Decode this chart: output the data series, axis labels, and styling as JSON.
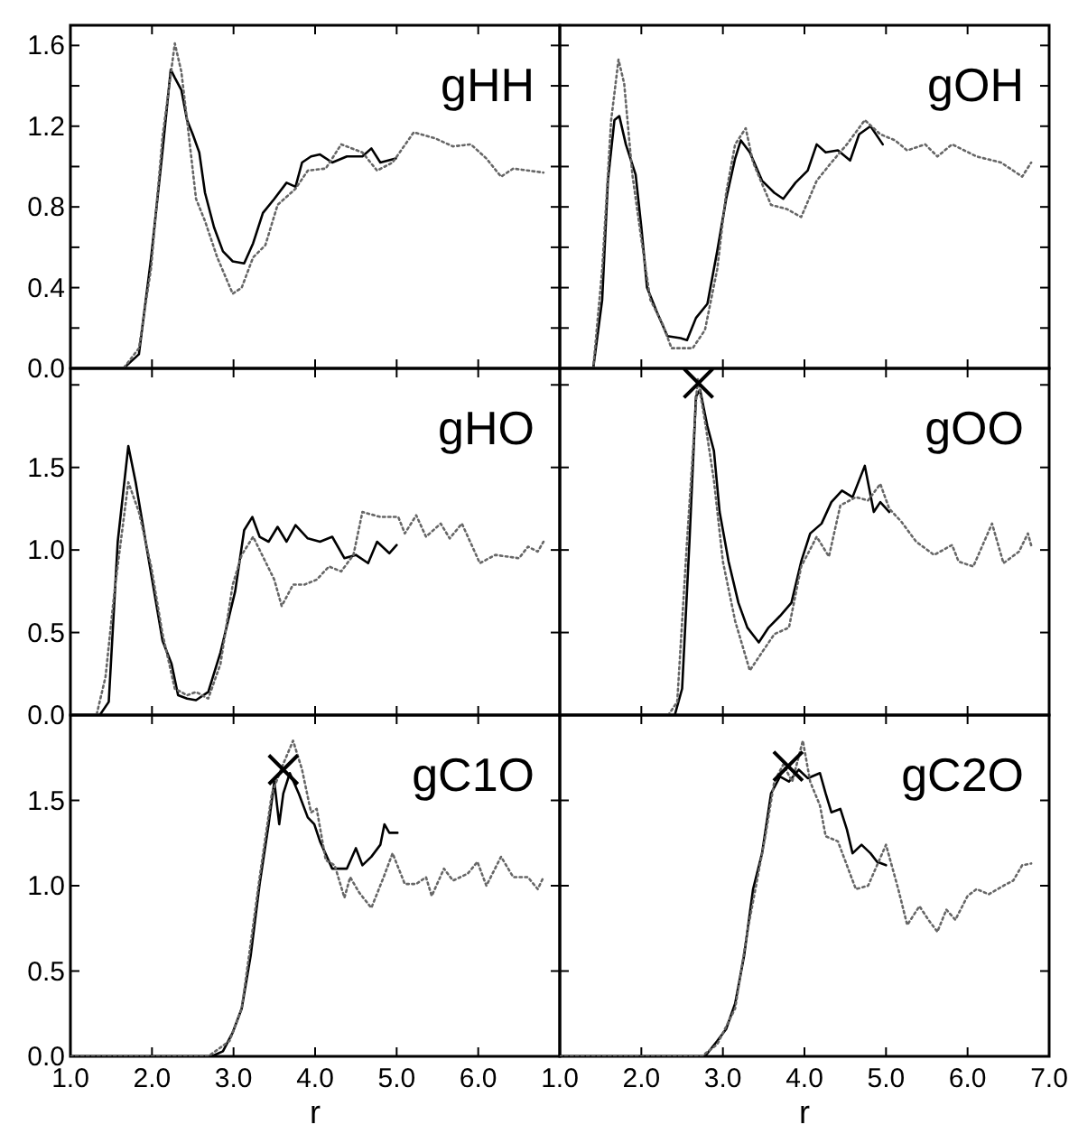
{
  "chart_data": [
    {
      "type": "line",
      "title": "gHH",
      "xlim": [
        1,
        7
      ],
      "xticks": [
        1,
        2,
        3,
        4,
        5,
        6,
        {
          "value": 7,
          "label": null
        }
      ],
      "ylim": [
        0,
        1.7
      ],
      "yticks": [
        {
          "value": 0,
          "label": "0.0"
        },
        {
          "value": 0.2,
          "label": null
        },
        {
          "value": 0.4,
          "label": "0.4"
        },
        {
          "value": 0.6,
          "label": null
        },
        {
          "value": 0.8,
          "label": "0.8"
        },
        {
          "value": 1.0,
          "label": null
        },
        {
          "value": 1.2,
          "label": "1.2"
        },
        {
          "value": 1.4,
          "label": null
        },
        {
          "value": 1.6,
          "label": "1.6"
        }
      ],
      "tick_labels": "y",
      "series": [
        {
          "color": "#000000",
          "line_style": "solid",
          "x": [
            1,
            1.65,
            1.84,
            1.99,
            2.13,
            2.23,
            2.28,
            2.36,
            2.43,
            2.5,
            2.58,
            2.65,
            2.76,
            2.87,
            2.99,
            3.13,
            3.24,
            3.36,
            3.5,
            3.65,
            3.76,
            3.84,
            3.95,
            4.06,
            4.21,
            4.39,
            4.58,
            4.69,
            4.8,
            4.99
          ],
          "values": [
            0,
            0,
            0.07,
            0.55,
            1.08,
            1.48,
            1.44,
            1.38,
            1.23,
            1.16,
            1.07,
            0.87,
            0.7,
            0.58,
            0.53,
            0.52,
            0.62,
            0.77,
            0.84,
            0.92,
            0.9,
            1.02,
            1.05,
            1.06,
            1.02,
            1.05,
            1.05,
            1.09,
            1.02,
            1.04
          ]
        },
        {
          "color": "#666666",
          "line_style": "dotted",
          "x": [
            1,
            1.65,
            1.84,
            1.99,
            2.13,
            2.28,
            2.36,
            2.43,
            2.54,
            2.65,
            2.8,
            2.99,
            3.1,
            3.24,
            3.39,
            3.54,
            3.76,
            3.91,
            4.13,
            4.32,
            4.58,
            4.76,
            4.95,
            5.21,
            5.47,
            5.69,
            5.91,
            6.1,
            6.28,
            6.43,
            6.8
          ],
          "values": [
            0,
            0,
            0.1,
            0.5,
            1.15,
            1.61,
            1.47,
            1.23,
            0.84,
            0.73,
            0.55,
            0.37,
            0.4,
            0.55,
            0.61,
            0.81,
            0.89,
            0.98,
            0.99,
            1.11,
            1.07,
            0.98,
            1.02,
            1.17,
            1.14,
            1.1,
            1.11,
            1.04,
            0.95,
            0.99,
            0.97
          ]
        }
      ]
    },
    {
      "type": "line",
      "title": "gOH",
      "xlim": [
        1,
        7
      ],
      "xticks": [
        1,
        2,
        3,
        4,
        5,
        6,
        7
      ],
      "ylim": [
        0,
        1.7
      ],
      "yticks": [
        0,
        0.2,
        0.4,
        0.6,
        0.8,
        1.0,
        1.2,
        1.4,
        1.6
      ],
      "tick_labels": false,
      "series": [
        {
          "color": "#000000",
          "line_style": "solid",
          "x": [
            1,
            1.41,
            1.52,
            1.59,
            1.67,
            1.73,
            1.81,
            1.93,
            2.0,
            2.07,
            2.19,
            2.32,
            2.48,
            2.56,
            2.67,
            2.81,
            2.93,
            3.04,
            3.15,
            3.22,
            3.33,
            3.48,
            3.63,
            3.74,
            3.89,
            4.04,
            4.15,
            4.26,
            4.41,
            4.56,
            4.67,
            4.81,
            4.96
          ],
          "values": [
            0,
            0,
            0.34,
            0.93,
            1.23,
            1.25,
            1.11,
            0.96,
            0.7,
            0.4,
            0.28,
            0.16,
            0.15,
            0.14,
            0.25,
            0.32,
            0.58,
            0.84,
            1.04,
            1.13,
            1.07,
            0.93,
            0.87,
            0.84,
            0.92,
            0.98,
            1.11,
            1.07,
            1.08,
            1.03,
            1.16,
            1.2,
            1.11
          ]
        },
        {
          "color": "#666666",
          "line_style": "dotted",
          "x": [
            1,
            1.41,
            1.52,
            1.63,
            1.72,
            1.79,
            1.89,
            2.0,
            2.11,
            2.26,
            2.37,
            2.63,
            2.78,
            2.93,
            3.04,
            3.15,
            3.28,
            3.37,
            3.59,
            3.78,
            3.96,
            4.15,
            4.33,
            4.52,
            4.74,
            4.93,
            5.11,
            5.26,
            5.48,
            5.63,
            5.81,
            6.11,
            6.41,
            6.67,
            6.78
          ],
          "values": [
            0,
            0,
            0.49,
            1.23,
            1.53,
            1.41,
            0.96,
            0.64,
            0.34,
            0.22,
            0.1,
            0.1,
            0.19,
            0.49,
            0.87,
            1.11,
            1.19,
            1.02,
            0.81,
            0.79,
            0.75,
            0.93,
            1.02,
            1.11,
            1.23,
            1.16,
            1.13,
            1.08,
            1.11,
            1.05,
            1.11,
            1.05,
            1.02,
            0.95,
            1.02
          ]
        }
      ]
    },
    {
      "type": "line",
      "title": "gHO",
      "xlim": [
        1,
        7
      ],
      "xticks": [
        1,
        2,
        3,
        4,
        5,
        6,
        {
          "value": 7,
          "label": null
        }
      ],
      "ylim": [
        0,
        2.1
      ],
      "yticks": [
        {
          "value": 0,
          "label": "0.0"
        },
        {
          "value": 0.5,
          "label": "0.5"
        },
        {
          "value": 1.0,
          "label": "1.0"
        },
        {
          "value": 1.5,
          "label": "1.5"
        },
        {
          "value": 2.0,
          "label": null
        }
      ],
      "tick_labels": "y",
      "series": [
        {
          "color": "#000000",
          "line_style": "solid",
          "x": [
            1,
            1.36,
            1.47,
            1.58,
            1.71,
            1.8,
            1.95,
            2.13,
            2.24,
            2.32,
            2.43,
            2.54,
            2.69,
            2.84,
            3.02,
            3.13,
            3.23,
            3.32,
            3.43,
            3.54,
            3.65,
            3.76,
            3.91,
            4.06,
            4.21,
            4.36,
            4.5,
            4.65,
            4.76,
            4.91,
            5.0
          ],
          "values": [
            0,
            0,
            0.08,
            1.05,
            1.63,
            1.41,
            0.97,
            0.45,
            0.31,
            0.12,
            0.1,
            0.09,
            0.14,
            0.38,
            0.75,
            1.12,
            1.2,
            1.08,
            1.05,
            1.14,
            1.05,
            1.15,
            1.07,
            1.05,
            1.08,
            0.95,
            0.97,
            0.92,
            1.05,
            0.98,
            1.03
          ]
        },
        {
          "color": "#666666",
          "line_style": "dotted",
          "x": [
            1,
            1.32,
            1.43,
            1.54,
            1.71,
            1.84,
            1.99,
            2.13,
            2.28,
            2.43,
            2.54,
            2.69,
            2.84,
            2.99,
            3.1,
            3.24,
            3.39,
            3.5,
            3.59,
            3.73,
            3.87,
            4.02,
            4.17,
            4.32,
            4.47,
            4.58,
            4.8,
            5.02,
            5.1,
            5.24,
            5.36,
            5.54,
            5.65,
            5.8,
            6.02,
            6.21,
            6.5,
            6.61,
            6.73,
            6.8
          ],
          "values": [
            0,
            0,
            0.23,
            0.75,
            1.41,
            1.23,
            0.9,
            0.49,
            0.16,
            0.12,
            0.14,
            0.1,
            0.31,
            0.79,
            0.97,
            1.08,
            0.93,
            0.82,
            0.66,
            0.79,
            0.79,
            0.82,
            0.9,
            0.87,
            0.97,
            1.23,
            1.2,
            1.2,
            1.1,
            1.21,
            1.08,
            1.16,
            1.07,
            1.16,
            0.92,
            0.97,
            0.95,
            1.02,
            0.99,
            1.05
          ]
        }
      ]
    },
    {
      "type": "line",
      "title": "gOO",
      "xlim": [
        1,
        7
      ],
      "xticks": [
        1,
        2,
        3,
        4,
        5,
        6,
        7
      ],
      "ylim": [
        0,
        2.1
      ],
      "yticks": [
        0,
        0.5,
        1.0,
        1.5,
        2.0
      ],
      "tick_labels": false,
      "series": [
        {
          "color": "#000000",
          "line_style": "solid",
          "x": [
            1,
            2.41,
            2.5,
            2.59,
            2.67,
            2.72,
            2.81,
            2.89,
            2.96,
            3.07,
            3.19,
            3.3,
            3.44,
            3.56,
            3.7,
            3.84,
            3.96,
            4.07,
            4.21,
            4.33,
            4.46,
            4.59,
            4.74,
            4.85,
            4.93,
            5.04
          ],
          "values": [
            0,
            0,
            0.16,
            1.05,
            1.93,
            1.97,
            1.75,
            1.6,
            1.23,
            0.93,
            0.68,
            0.53,
            0.44,
            0.53,
            0.6,
            0.68,
            0.93,
            1.1,
            1.16,
            1.29,
            1.36,
            1.32,
            1.51,
            1.23,
            1.29,
            1.23
          ]
        },
        {
          "color": "#666666",
          "line_style": "dotted",
          "x": [
            1,
            2.33,
            2.44,
            2.56,
            2.69,
            2.78,
            2.89,
            3.0,
            3.15,
            3.33,
            3.48,
            3.63,
            3.81,
            3.96,
            4.15,
            4.3,
            4.44,
            4.63,
            4.78,
            4.93,
            5.04,
            5.19,
            5.37,
            5.59,
            5.81,
            5.89,
            6.07,
            6.3,
            6.44,
            6.63,
            6.74,
            6.79
          ],
          "values": [
            0,
            0,
            0.08,
            1.05,
            2.04,
            1.78,
            1.42,
            0.93,
            0.57,
            0.27,
            0.38,
            0.49,
            0.53,
            0.9,
            1.08,
            0.96,
            1.27,
            1.32,
            1.3,
            1.4,
            1.25,
            1.17,
            1.05,
            0.97,
            1.03,
            0.93,
            0.9,
            1.16,
            0.92,
            0.99,
            1.1,
            1.01
          ]
        },
        {
          "type": "scatter",
          "marker": "cross",
          "color": "#000000",
          "x": [
            2.7
          ],
          "values": [
            2.01
          ]
        }
      ]
    },
    {
      "type": "line",
      "title": "gC1O",
      "xlabel": "r",
      "xlim": [
        1,
        7
      ],
      "xticks": [
        {
          "value": 1,
          "label": "1.0"
        },
        {
          "value": 2,
          "label": "2.0"
        },
        {
          "value": 3,
          "label": "3.0"
        },
        {
          "value": 4,
          "label": "4.0"
        },
        {
          "value": 5,
          "label": "5.0"
        },
        {
          "value": 6,
          "label": "6.0"
        },
        {
          "value": 7,
          "label": null
        }
      ],
      "ylim": [
        0,
        2.0
      ],
      "yticks": [
        {
          "value": 0,
          "label": "0.0"
        },
        {
          "value": 0.5,
          "label": "0.5"
        },
        {
          "value": 1.0,
          "label": "1.0"
        },
        {
          "value": 1.5,
          "label": "1.5"
        },
        {
          "value": 2.0,
          "label": null
        }
      ],
      "series": [
        {
          "color": "#000000",
          "line_style": "solid",
          "x": [
            1,
            2.73,
            2.87,
            2.99,
            3.1,
            3.21,
            3.32,
            3.43,
            3.5,
            3.56,
            3.61,
            3.69,
            3.8,
            3.91,
            3.99,
            4.06,
            4.21,
            4.39,
            4.5,
            4.58,
            4.69,
            4.8,
            4.85,
            4.91,
            5.01
          ],
          "values": [
            0,
            0,
            0.03,
            0.14,
            0.28,
            0.59,
            1.01,
            1.36,
            1.61,
            1.36,
            1.54,
            1.66,
            1.54,
            1.4,
            1.36,
            1.26,
            1.1,
            1.1,
            1.22,
            1.12,
            1.17,
            1.24,
            1.36,
            1.31,
            1.31
          ]
        },
        {
          "color": "#666666",
          "line_style": "dotted",
          "x": [
            1,
            2.69,
            2.95,
            3.1,
            3.21,
            3.32,
            3.47,
            3.58,
            3.73,
            3.84,
            3.95,
            4.02,
            4.13,
            4.24,
            4.36,
            4.43,
            4.54,
            4.69,
            4.84,
            4.95,
            5.1,
            5.24,
            5.36,
            5.43,
            5.58,
            5.69,
            5.87,
            5.99,
            6.1,
            6.28,
            6.43,
            6.61,
            6.73,
            6.8
          ],
          "values": [
            0,
            0,
            0.09,
            0.28,
            0.66,
            1.05,
            1.54,
            1.68,
            1.85,
            1.68,
            1.43,
            1.45,
            1.15,
            1.12,
            0.93,
            1.05,
            0.96,
            0.87,
            1.05,
            1.19,
            1.01,
            1.01,
            1.05,
            0.94,
            1.1,
            1.03,
            1.07,
            1.14,
            1.0,
            1.17,
            1.05,
            1.05,
            0.98,
            1.05
          ]
        },
        {
          "type": "scatter",
          "marker": "cross",
          "color": "#000000",
          "x": [
            3.61
          ],
          "values": [
            1.68
          ]
        }
      ]
    },
    {
      "type": "line",
      "title": "gC2O",
      "xlabel": "r",
      "xlim": [
        1,
        7
      ],
      "xticks": [
        {
          "value": 1,
          "label": "1.0"
        },
        {
          "value": 2,
          "label": "2.0"
        },
        {
          "value": 3,
          "label": "3.0"
        },
        {
          "value": 4,
          "label": "4.0"
        },
        {
          "value": 5,
          "label": "5.0"
        },
        {
          "value": 6,
          "label": "6.0"
        },
        {
          "value": 7,
          "label": "7.0"
        }
      ],
      "ylim": [
        0,
        2.0
      ],
      "yticks": [
        0,
        0.5,
        1.0,
        1.5,
        2.0
      ],
      "tick_labels": "x",
      "series": [
        {
          "color": "#000000",
          "line_style": "solid",
          "x": [
            1,
            2.78,
            2.93,
            3.04,
            3.15,
            3.26,
            3.37,
            3.48,
            3.59,
            3.7,
            3.81,
            3.93,
            4.04,
            4.19,
            4.26,
            4.33,
            4.44,
            4.52,
            4.59,
            4.7,
            4.81,
            4.89,
            5.0
          ],
          "values": [
            0,
            0,
            0.09,
            0.16,
            0.31,
            0.59,
            0.98,
            1.19,
            1.54,
            1.64,
            1.61,
            1.68,
            1.63,
            1.66,
            1.54,
            1.43,
            1.45,
            1.33,
            1.19,
            1.24,
            1.19,
            1.14,
            1.12
          ]
        },
        {
          "color": "#666666",
          "line_style": "dotted",
          "x": [
            1,
            2.74,
            2.93,
            3.15,
            3.3,
            3.41,
            3.52,
            3.63,
            3.74,
            3.85,
            3.98,
            4.07,
            4.19,
            4.26,
            4.41,
            4.52,
            4.63,
            4.78,
            4.89,
            5.0,
            5.15,
            5.26,
            5.41,
            5.52,
            5.63,
            5.74,
            5.85,
            6.0,
            6.11,
            6.26,
            6.44,
            6.56,
            6.67,
            6.78
          ],
          "values": [
            0,
            0,
            0.07,
            0.28,
            0.73,
            1.01,
            1.29,
            1.61,
            1.71,
            1.61,
            1.85,
            1.61,
            1.47,
            1.29,
            1.26,
            1.12,
            0.98,
            1.0,
            1.12,
            1.24,
            0.98,
            0.77,
            0.88,
            0.8,
            0.73,
            0.86,
            0.8,
            0.94,
            0.98,
            0.95,
            1.0,
            1.03,
            1.12,
            1.13
          ]
        },
        {
          "type": "scatter",
          "marker": "cross",
          "color": "#000000",
          "x": [
            3.8
          ],
          "values": [
            1.7
          ]
        }
      ]
    }
  ]
}
